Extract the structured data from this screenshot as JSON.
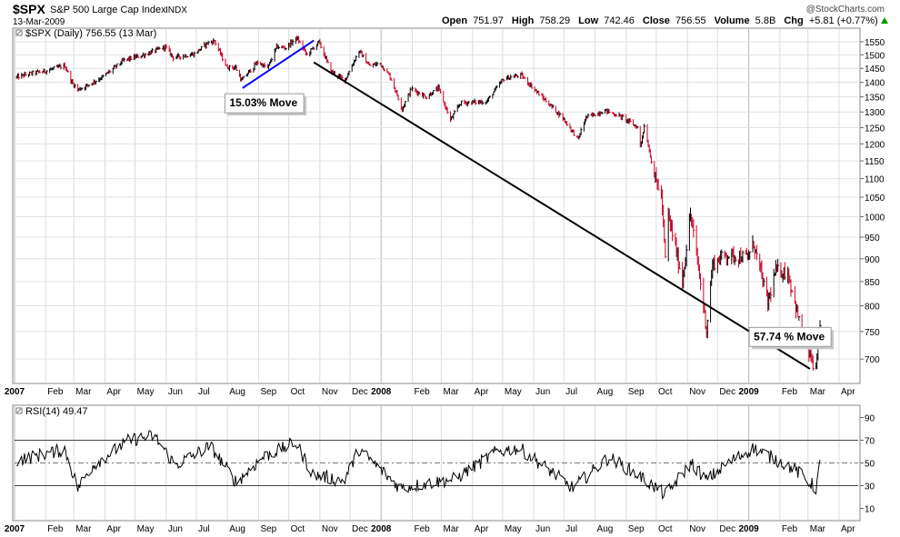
{
  "header": {
    "symbol": "$SPX",
    "name": "S&P 500 Large Cap Index",
    "exchange": "INDX",
    "date": "13-Mar-2009",
    "watermark": "@StockCharts.com",
    "quote": [
      {
        "label": "Open",
        "value": "751.97"
      },
      {
        "label": "High",
        "value": "758.29"
      },
      {
        "label": "Low",
        "value": "742.46"
      },
      {
        "label": "Close",
        "value": "756.55"
      },
      {
        "label": "Volume",
        "value": "5.8B"
      },
      {
        "label": "Chg",
        "value": "+5.81 (+0.77%)",
        "arrow": "up-arrow-icon"
      }
    ]
  },
  "colors": {
    "up": "#000000",
    "down": "#cc0022",
    "blue_line": "#0000ff",
    "trend_line": "#000000",
    "grid": "#d0d0d0",
    "arrow_up": "#009900"
  },
  "chart_data": [
    {
      "type": "ohlc",
      "legend": "$SPX (Daily) 756.55 (13 Mar)",
      "y_scale": "log",
      "ylim": [
        660,
        1600
      ],
      "y_ticks": [
        700,
        750,
        800,
        850,
        900,
        950,
        1000,
        1050,
        1100,
        1150,
        1200,
        1250,
        1300,
        1350,
        1400,
        1450,
        1500,
        1550
      ],
      "x_range": [
        "2007-01-01",
        "2009-04-20"
      ],
      "x_ticks": [
        {
          "date": "2007-01-01",
          "label": "2007",
          "year": true
        },
        {
          "date": "2007-02-01",
          "label": "Feb"
        },
        {
          "date": "2007-03-01",
          "label": "Mar"
        },
        {
          "date": "2007-04-01",
          "label": "Apr"
        },
        {
          "date": "2007-05-01",
          "label": "May"
        },
        {
          "date": "2007-06-01",
          "label": "Jun"
        },
        {
          "date": "2007-07-01",
          "label": "Jul"
        },
        {
          "date": "2007-08-01",
          "label": "Aug"
        },
        {
          "date": "2007-09-01",
          "label": "Sep"
        },
        {
          "date": "2007-10-01",
          "label": "Oct"
        },
        {
          "date": "2007-11-01",
          "label": "Nov"
        },
        {
          "date": "2007-12-01",
          "label": "Dec"
        },
        {
          "date": "2008-01-01",
          "label": "2008",
          "year": true
        },
        {
          "date": "2008-02-01",
          "label": "Feb"
        },
        {
          "date": "2008-03-01",
          "label": "Mar"
        },
        {
          "date": "2008-04-01",
          "label": "Apr"
        },
        {
          "date": "2008-05-01",
          "label": "May"
        },
        {
          "date": "2008-06-01",
          "label": "Jun"
        },
        {
          "date": "2008-07-01",
          "label": "Jul"
        },
        {
          "date": "2008-08-01",
          "label": "Aug"
        },
        {
          "date": "2008-09-01",
          "label": "Sep"
        },
        {
          "date": "2008-10-01",
          "label": "Oct"
        },
        {
          "date": "2008-11-01",
          "label": "Nov"
        },
        {
          "date": "2008-12-01",
          "label": "Dec"
        },
        {
          "date": "2009-01-01",
          "label": "2009",
          "year": true
        },
        {
          "date": "2009-02-01",
          "label": "Feb"
        },
        {
          "date": "2009-03-01",
          "label": "Mar"
        },
        {
          "date": "2009-04-01",
          "label": "Apr"
        }
      ],
      "close_path": [
        [
          "2007-01-03",
          1418
        ],
        [
          "2007-01-15",
          1430
        ],
        [
          "2007-01-31",
          1440
        ],
        [
          "2007-02-20",
          1460
        ],
        [
          "2007-02-27",
          1400
        ],
        [
          "2007-03-05",
          1375
        ],
        [
          "2007-03-15",
          1390
        ],
        [
          "2007-03-30",
          1420
        ],
        [
          "2007-04-20",
          1480
        ],
        [
          "2007-05-10",
          1500
        ],
        [
          "2007-05-31",
          1530
        ],
        [
          "2007-06-08",
          1490
        ],
        [
          "2007-06-29",
          1503
        ],
        [
          "2007-07-12",
          1545
        ],
        [
          "2007-07-19",
          1553
        ],
        [
          "2007-07-31",
          1455
        ],
        [
          "2007-08-09",
          1453
        ],
        [
          "2007-08-15",
          1406
        ],
        [
          "2007-08-16",
          1411
        ],
        [
          "2007-08-31",
          1473
        ],
        [
          "2007-09-10",
          1451
        ],
        [
          "2007-09-19",
          1530
        ],
        [
          "2007-09-28",
          1527
        ],
        [
          "2007-10-09",
          1565
        ],
        [
          "2007-10-19",
          1500
        ],
        [
          "2007-10-31",
          1549
        ],
        [
          "2007-11-12",
          1439
        ],
        [
          "2007-11-26",
          1407
        ],
        [
          "2007-12-10",
          1515
        ],
        [
          "2007-12-20",
          1460
        ],
        [
          "2007-12-31",
          1468
        ],
        [
          "2008-01-10",
          1420
        ],
        [
          "2008-01-22",
          1310
        ],
        [
          "2008-01-31",
          1378
        ],
        [
          "2008-02-15",
          1350
        ],
        [
          "2008-02-27",
          1380
        ],
        [
          "2008-03-10",
          1273
        ],
        [
          "2008-03-20",
          1330
        ],
        [
          "2008-04-15",
          1334
        ],
        [
          "2008-05-02",
          1413
        ],
        [
          "2008-05-19",
          1426
        ],
        [
          "2008-06-06",
          1360
        ],
        [
          "2008-06-30",
          1280
        ],
        [
          "2008-07-15",
          1214
        ],
        [
          "2008-07-23",
          1282
        ],
        [
          "2008-08-11",
          1305
        ],
        [
          "2008-08-29",
          1282
        ],
        [
          "2008-09-12",
          1251
        ],
        [
          "2008-09-15",
          1192
        ],
        [
          "2008-09-19",
          1255
        ],
        [
          "2008-09-29",
          1106
        ],
        [
          "2008-10-06",
          1056
        ],
        [
          "2008-10-10",
          899
        ],
        [
          "2008-10-13",
          1003
        ],
        [
          "2008-10-27",
          848
        ],
        [
          "2008-11-04",
          1005
        ],
        [
          "2008-11-20",
          752
        ],
        [
          "2008-11-26",
          887
        ],
        [
          "2008-12-08",
          909
        ],
        [
          "2008-12-31",
          903
        ],
        [
          "2009-01-06",
          934
        ],
        [
          "2009-01-20",
          805
        ],
        [
          "2009-01-28",
          874
        ],
        [
          "2009-02-09",
          869
        ],
        [
          "2009-02-23",
          743
        ],
        [
          "2009-03-09",
          677
        ],
        [
          "2009-03-13",
          757
        ]
      ],
      "trendlines": [
        {
          "name": "blue-trendline",
          "color": "blue_line",
          "from": [
            "2007-08-16",
            1380
          ],
          "to": [
            "2007-10-26",
            1555
          ]
        },
        {
          "name": "black-trendline",
          "color": "trend_line",
          "from": [
            "2007-10-26",
            1472
          ],
          "to": [
            "2009-03-03",
            683
          ]
        }
      ],
      "annotations": [
        {
          "text": "15.03% Move",
          "date": "2007-08-03",
          "value": 1318
        },
        {
          "text": "57.74 % Move",
          "date": "2009-01-06",
          "value": 734
        }
      ]
    },
    {
      "type": "line",
      "legend": "RSI(14) 49.47",
      "ylim": [
        0,
        100
      ],
      "y_ticks": [
        10,
        30,
        50,
        70,
        90
      ],
      "ref_lines": [
        30,
        50,
        70
      ],
      "rsi_path": [
        [
          "2007-01-03",
          52
        ],
        [
          "2007-02-20",
          62
        ],
        [
          "2007-03-05",
          28
        ],
        [
          "2007-03-20",
          48
        ],
        [
          "2007-04-25",
          70
        ],
        [
          "2007-05-20",
          74
        ],
        [
          "2007-06-10",
          48
        ],
        [
          "2007-07-15",
          65
        ],
        [
          "2007-08-10",
          33
        ],
        [
          "2007-09-05",
          55
        ],
        [
          "2007-10-08",
          68
        ],
        [
          "2007-10-25",
          40
        ],
        [
          "2007-11-25",
          34
        ],
        [
          "2007-12-10",
          62
        ],
        [
          "2008-01-20",
          28
        ],
        [
          "2008-03-15",
          36
        ],
        [
          "2008-04-25",
          60
        ],
        [
          "2008-05-18",
          63
        ],
        [
          "2008-07-10",
          28
        ],
        [
          "2008-08-15",
          55
        ],
        [
          "2008-09-15",
          38
        ],
        [
          "2008-10-10",
          22
        ],
        [
          "2008-11-05",
          50
        ],
        [
          "2008-11-20",
          35
        ],
        [
          "2008-12-15",
          52
        ],
        [
          "2009-01-06",
          63
        ],
        [
          "2009-02-15",
          45
        ],
        [
          "2009-03-09",
          28
        ],
        [
          "2009-03-13",
          49
        ]
      ]
    }
  ]
}
